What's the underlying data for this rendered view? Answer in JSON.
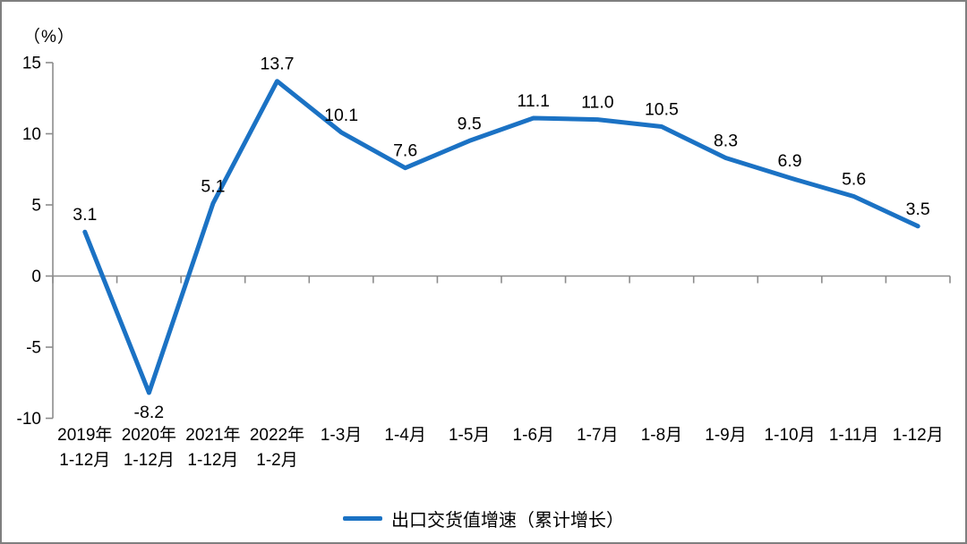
{
  "chart_data": {
    "type": "line",
    "title": "",
    "unit_label": "（%）",
    "categories": [
      [
        "2019年",
        "1-12月"
      ],
      [
        "2020年",
        "1-12月"
      ],
      [
        "2021年",
        "1-12月"
      ],
      [
        "2022年",
        "1-2月"
      ],
      [
        "1-3月"
      ],
      [
        "1-4月"
      ],
      [
        "1-5月"
      ],
      [
        "1-6月"
      ],
      [
        "1-7月"
      ],
      [
        "1-8月"
      ],
      [
        "1-9月"
      ],
      [
        "1-10月"
      ],
      [
        "1-11月"
      ],
      [
        "1-12月"
      ]
    ],
    "series": [
      {
        "name": "出口交货值增速（累计增长）",
        "values": [
          3.1,
          -8.2,
          5.1,
          13.7,
          10.1,
          7.6,
          9.5,
          11.1,
          11.0,
          10.5,
          8.3,
          6.9,
          5.6,
          3.5
        ]
      }
    ],
    "data_labels_shown": true,
    "data_label_format": "0.1f",
    "ylim": [
      -10,
      15
    ],
    "yticks": [
      15,
      10,
      5,
      0,
      -5,
      -10
    ],
    "xlabel": "",
    "ylabel": "（%）",
    "grid": "off",
    "legend_position": "bottom-center",
    "colors": {
      "line": "#1B72C4",
      "axis": "#8C8C8C",
      "text": "#000000",
      "background": "#FFFFFF",
      "border": "#7F7F7F"
    }
  },
  "legend": {
    "label": "出口交货值增速（累计增长）"
  }
}
